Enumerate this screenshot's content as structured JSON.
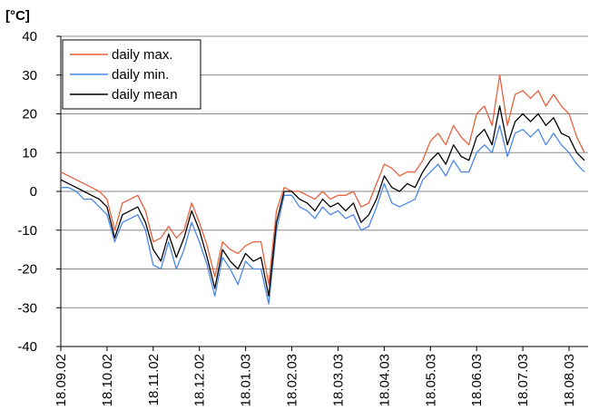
{
  "chart_data": {
    "type": "line",
    "y_label": "[°C]",
    "categories": [
      "18.09.02",
      null,
      null,
      null,
      null,
      null,
      "18.10.02",
      null,
      null,
      null,
      null,
      null,
      "18.11.02",
      null,
      null,
      null,
      null,
      null,
      "18.12.02",
      null,
      null,
      null,
      null,
      null,
      "18.01.03",
      null,
      null,
      null,
      null,
      null,
      "18.02.03",
      null,
      null,
      null,
      null,
      null,
      "18.03.03",
      null,
      null,
      null,
      null,
      null,
      "18.04.03",
      null,
      null,
      null,
      null,
      null,
      "18.05.03",
      null,
      null,
      null,
      null,
      null,
      "18.06.03",
      null,
      null,
      null,
      null,
      null,
      "18.07.03",
      null,
      null,
      null,
      null,
      null,
      "18.08.03",
      null,
      null
    ],
    "series": [
      {
        "name": "daily max.",
        "color": "#e8603c",
        "values": [
          5,
          4,
          3,
          2,
          1,
          0,
          -2,
          -10,
          -3,
          -2,
          -1,
          -5,
          -13,
          -12,
          -9,
          -12,
          -10,
          -3,
          -8,
          -14,
          -22,
          -13,
          -15,
          -16,
          -14,
          -13,
          -13,
          -24,
          -5,
          1,
          0,
          0,
          -1,
          -2,
          0,
          -2,
          -1,
          -1,
          0,
          -4,
          -3,
          2,
          7,
          6,
          4,
          5,
          5,
          8,
          13,
          15,
          12,
          17,
          14,
          12,
          20,
          22,
          17,
          30,
          17,
          25,
          26,
          24,
          26,
          22,
          25,
          22,
          20,
          14,
          10
        ]
      },
      {
        "name": "daily min.",
        "color": "#4a86e8",
        "values": [
          1,
          1,
          0,
          -2,
          -2,
          -4,
          -6,
          -13,
          -8,
          -7,
          -6,
          -10,
          -19,
          -20,
          -13,
          -20,
          -15,
          -8,
          -13,
          -19,
          -27,
          -17,
          -20,
          -24,
          -18,
          -20,
          -20,
          -29,
          -10,
          -1,
          -1,
          -4,
          -5,
          -7,
          -4,
          -6,
          -5,
          -7,
          -6,
          -10,
          -9,
          -4,
          2,
          -3,
          -4,
          -3,
          -2,
          3,
          5,
          7,
          4,
          8,
          5,
          5,
          10,
          12,
          10,
          17,
          9,
          15,
          16,
          14,
          16,
          12,
          15,
          12,
          10,
          7,
          5
        ]
      },
      {
        "name": "daily mean",
        "color": "#000000",
        "values": [
          3,
          2,
          1,
          0,
          -1,
          -2,
          -4,
          -12,
          -6,
          -5,
          -4,
          -8,
          -15,
          -18,
          -11,
          -17,
          -12,
          -5,
          -10,
          -17,
          -25,
          -15,
          -18,
          -20,
          -16,
          -18,
          -17,
          -27,
          -8,
          0,
          0,
          -2,
          -3,
          -5,
          -2,
          -4,
          -3,
          -5,
          -3,
          -8,
          -6,
          -2,
          4,
          1,
          0,
          2,
          1,
          5,
          8,
          10,
          7,
          12,
          9,
          8,
          14,
          16,
          12,
          22,
          12,
          18,
          20,
          18,
          20,
          17,
          19,
          15,
          14,
          10,
          8
        ]
      }
    ],
    "ylim": [
      -40,
      40
    ],
    "yticks": [
      -40,
      -30,
      -20,
      -10,
      0,
      10,
      20,
      30,
      40
    ],
    "grid": true,
    "legend": "top-left"
  }
}
